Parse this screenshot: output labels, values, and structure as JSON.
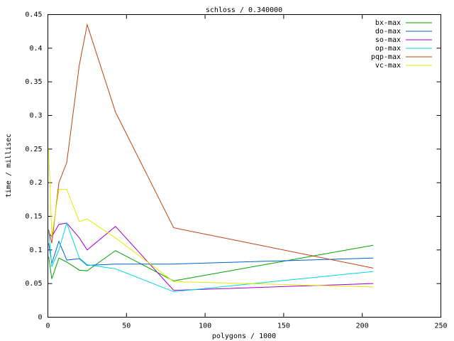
{
  "chart_data": {
    "type": "line",
    "title": "schloss / 0.340000",
    "x_label": "polygons / 1000",
    "y_label": "time / millisec",
    "x": [
      0.5,
      2.5,
      7,
      12,
      20,
      25,
      43,
      80,
      207
    ],
    "series": [
      {
        "name": "bx-max",
        "color": "#00a000",
        "values": [
          0.09,
          0.057,
          0.088,
          0.082,
          0.07,
          0.069,
          0.099,
          0.054,
          0.107
        ]
      },
      {
        "name": "do-max",
        "color": "#0060d0",
        "values": [
          0.11,
          0.08,
          0.113,
          0.085,
          0.087,
          0.077,
          0.079,
          0.079,
          0.088
        ]
      },
      {
        "name": "so-max",
        "color": "#a000d0",
        "values": [
          0.125,
          0.12,
          0.138,
          0.14,
          0.118,
          0.1,
          0.135,
          0.04,
          0.05
        ]
      },
      {
        "name": "op-max",
        "color": "#00d8d8",
        "values": [
          0.13,
          0.075,
          0.1,
          0.14,
          0.088,
          0.078,
          0.072,
          0.038,
          0.068
        ]
      },
      {
        "name": "pqp-max",
        "color": "#c04010",
        "values": [
          0.13,
          0.11,
          0.2,
          0.23,
          0.375,
          0.435,
          0.305,
          0.133,
          0.073
        ]
      },
      {
        "name": "vc-max",
        "color": "#e8e800",
        "values": [
          0.25,
          0.12,
          0.19,
          0.19,
          0.142,
          0.146,
          0.118,
          0.053,
          0.045
        ]
      }
    ],
    "xlim": [
      0,
      250
    ],
    "xticks": [
      0,
      50,
      100,
      150,
      200,
      250
    ],
    "ylim": [
      0,
      0.45
    ],
    "yticks": [
      0,
      0.05,
      0.1,
      0.15,
      0.2,
      0.25,
      0.3,
      0.35,
      0.4,
      0.45
    ],
    "legend_position": "top-right"
  }
}
